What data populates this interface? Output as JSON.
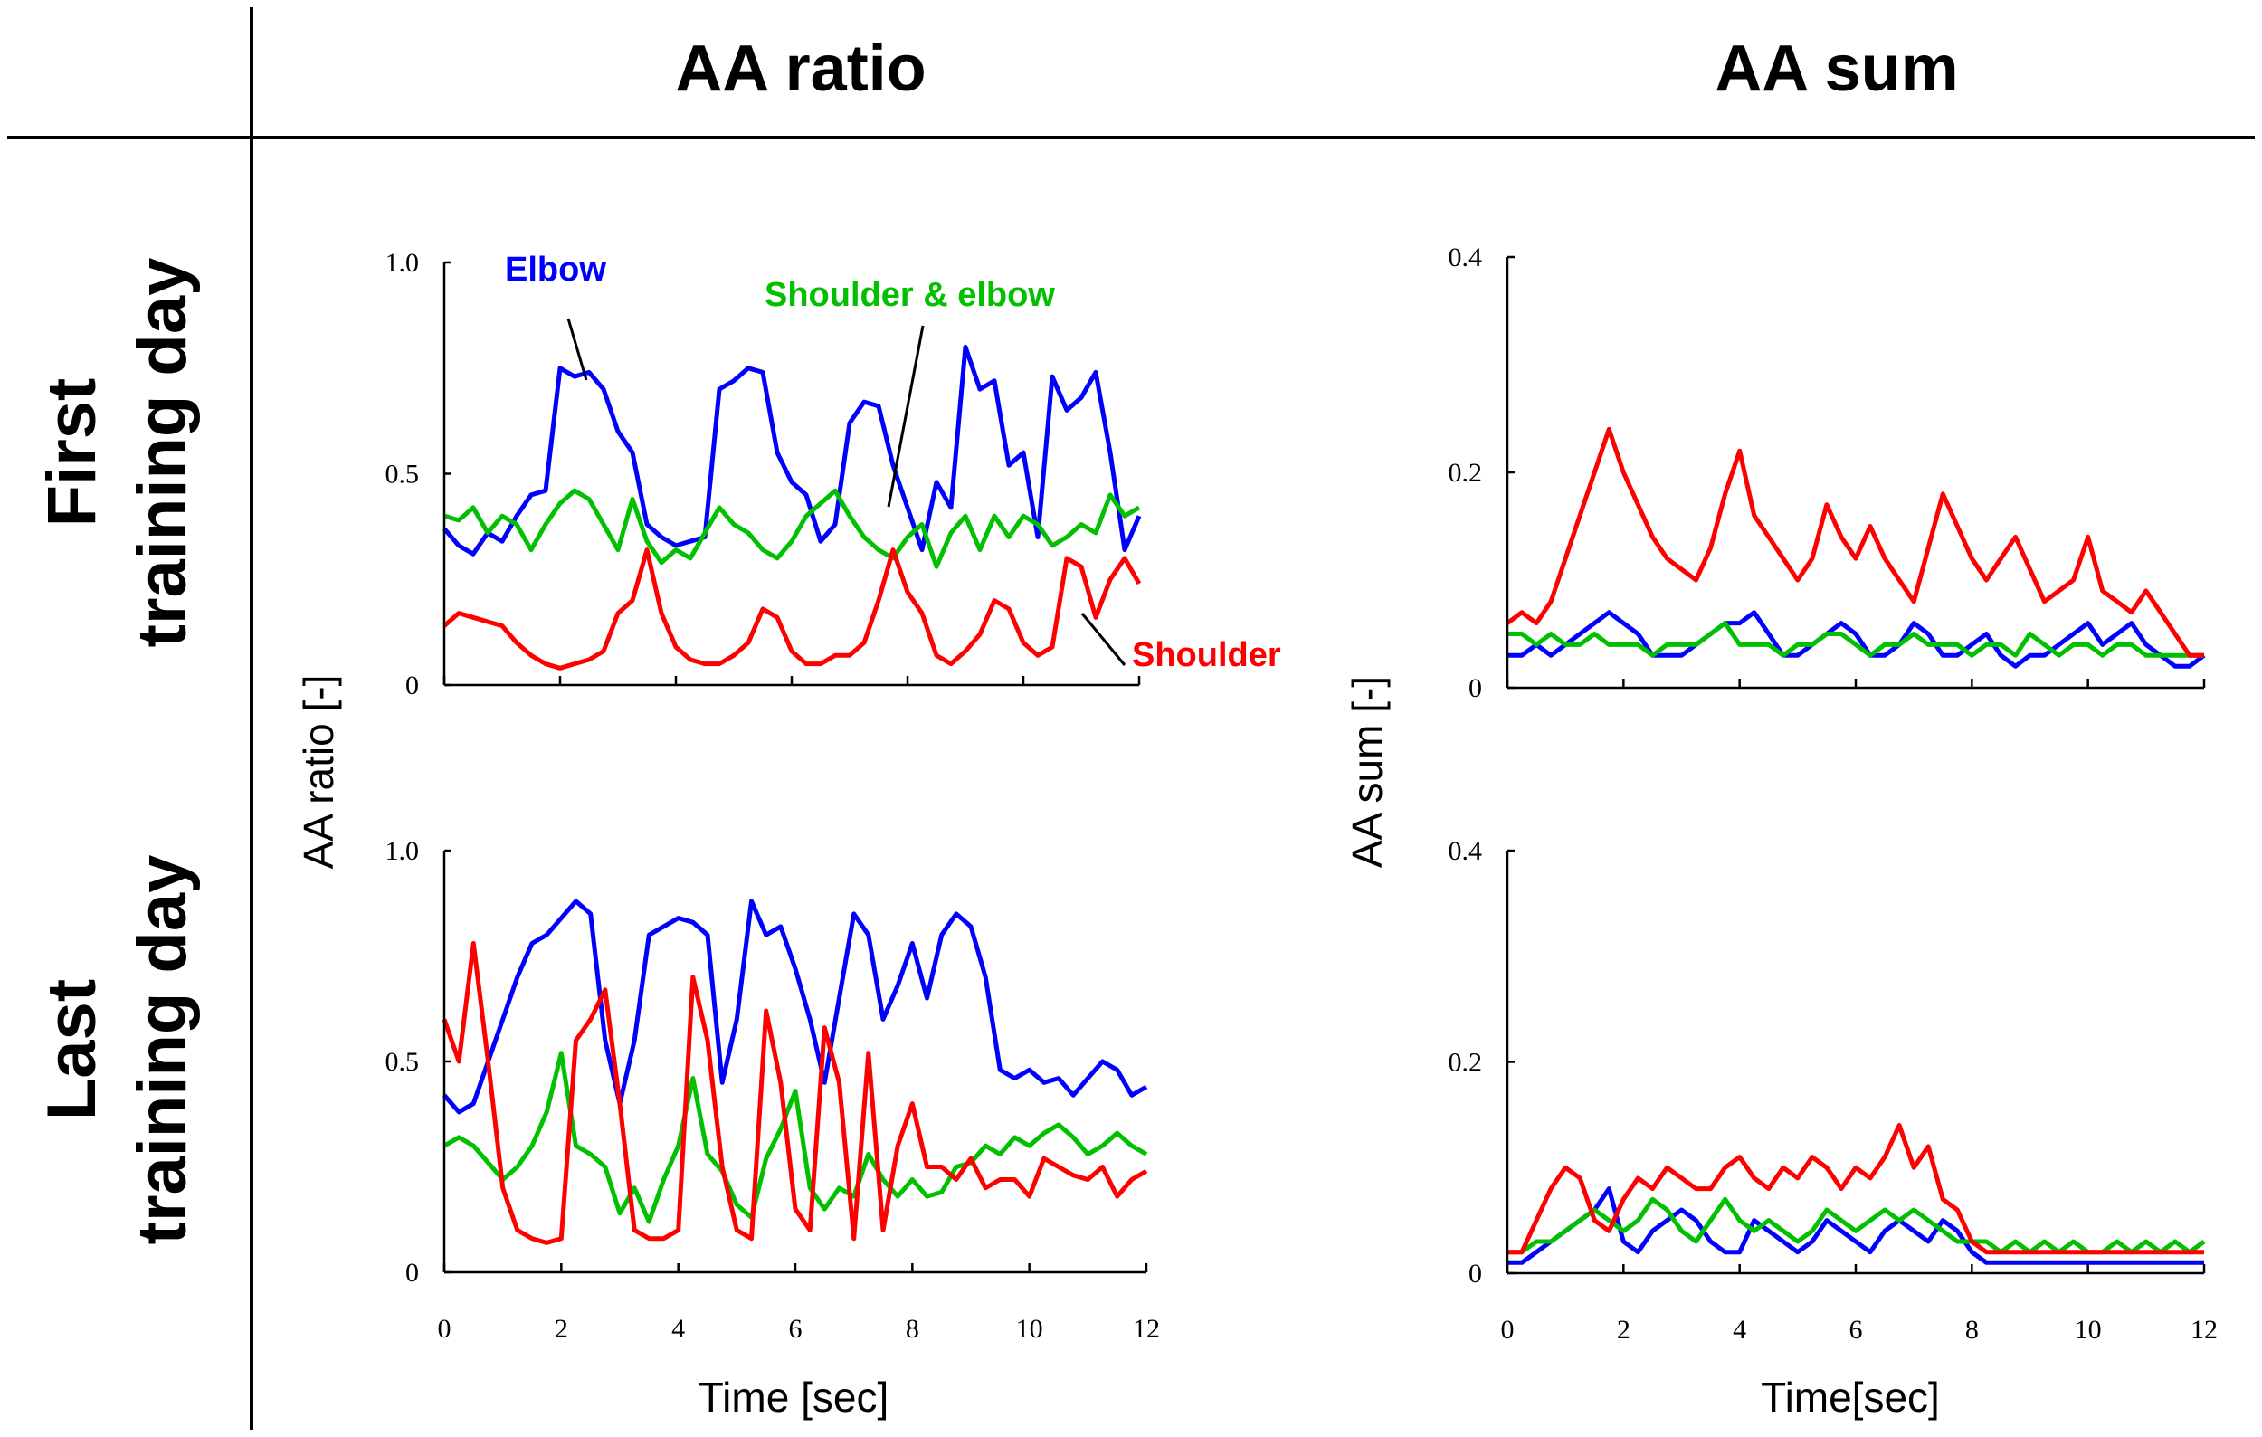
{
  "column_titles": [
    "AA ratio",
    "AA sum"
  ],
  "row_labels": [
    [
      "First",
      "training day"
    ],
    [
      "Last",
      "training day"
    ]
  ],
  "colors": {
    "Elbow": "#0000ff",
    "Shoulder & elbow": "#00c000",
    "Shoulder": "#ff0000"
  },
  "chart_data": [
    {
      "type": "line",
      "id": "ratio-first",
      "title": "AA ratio - First training day",
      "xlabel": "",
      "ylabel": "AA ratio [-]",
      "xlim": [
        0,
        12
      ],
      "ylim": [
        0,
        1.0
      ],
      "yticks": [
        "0",
        "0.5",
        "1.0"
      ],
      "ytick_values": [
        0,
        0.5,
        1.0
      ],
      "xticks": [],
      "xtick_values": [
        0,
        2,
        4,
        6,
        8,
        10,
        12
      ],
      "x_step": 0.25,
      "legend": [
        "Elbow",
        "Shoulder & elbow",
        "Shoulder"
      ],
      "series": [
        {
          "name": "Elbow",
          "values": [
            0.37,
            0.33,
            0.31,
            0.36,
            0.34,
            0.4,
            0.45,
            0.46,
            0.75,
            0.73,
            0.74,
            0.7,
            0.6,
            0.55,
            0.38,
            0.35,
            0.33,
            0.34,
            0.35,
            0.7,
            0.72,
            0.75,
            0.74,
            0.55,
            0.48,
            0.45,
            0.34,
            0.38,
            0.62,
            0.67,
            0.66,
            0.52,
            0.42,
            0.32,
            0.48,
            0.42,
            0.8,
            0.7,
            0.72,
            0.52,
            0.55,
            0.35,
            0.73,
            0.65,
            0.68,
            0.74,
            0.55,
            0.32,
            0.4
          ]
        },
        {
          "name": "Shoulder & elbow",
          "values": [
            0.4,
            0.39,
            0.42,
            0.36,
            0.4,
            0.38,
            0.32,
            0.38,
            0.43,
            0.46,
            0.44,
            0.38,
            0.32,
            0.44,
            0.34,
            0.29,
            0.32,
            0.3,
            0.36,
            0.42,
            0.38,
            0.36,
            0.32,
            0.3,
            0.34,
            0.4,
            0.43,
            0.46,
            0.4,
            0.35,
            0.32,
            0.3,
            0.35,
            0.38,
            0.28,
            0.36,
            0.4,
            0.32,
            0.4,
            0.35,
            0.4,
            0.38,
            0.33,
            0.35,
            0.38,
            0.36,
            0.45,
            0.4,
            0.42
          ]
        },
        {
          "name": "Shoulder",
          "values": [
            0.14,
            0.17,
            0.16,
            0.15,
            0.14,
            0.1,
            0.07,
            0.05,
            0.04,
            0.05,
            0.06,
            0.08,
            0.17,
            0.2,
            0.32,
            0.17,
            0.09,
            0.06,
            0.05,
            0.05,
            0.07,
            0.1,
            0.18,
            0.16,
            0.08,
            0.05,
            0.05,
            0.07,
            0.07,
            0.1,
            0.2,
            0.32,
            0.22,
            0.17,
            0.07,
            0.05,
            0.08,
            0.12,
            0.2,
            0.18,
            0.1,
            0.07,
            0.09,
            0.3,
            0.28,
            0.16,
            0.25,
            0.3,
            0.24
          ]
        }
      ]
    },
    {
      "type": "line",
      "id": "sum-first",
      "title": "AA sum - First training day",
      "xlabel": "",
      "ylabel": "AA sum [-]",
      "xlim": [
        0,
        12
      ],
      "ylim": [
        0,
        0.4
      ],
      "yticks": [
        "0",
        "0.2",
        "0.4"
      ],
      "ytick_values": [
        0,
        0.2,
        0.4
      ],
      "xticks": [],
      "xtick_values": [
        0,
        2,
        4,
        6,
        8,
        10,
        12
      ],
      "x_step": 0.25,
      "series": [
        {
          "name": "Elbow",
          "values": [
            0.03,
            0.03,
            0.04,
            0.03,
            0.04,
            0.05,
            0.06,
            0.07,
            0.06,
            0.05,
            0.03,
            0.03,
            0.03,
            0.04,
            0.05,
            0.06,
            0.06,
            0.07,
            0.05,
            0.03,
            0.03,
            0.04,
            0.05,
            0.06,
            0.05,
            0.03,
            0.03,
            0.04,
            0.06,
            0.05,
            0.03,
            0.03,
            0.04,
            0.05,
            0.03,
            0.02,
            0.03,
            0.03,
            0.04,
            0.05,
            0.06,
            0.04,
            0.05,
            0.06,
            0.04,
            0.03,
            0.02,
            0.02,
            0.03
          ]
        },
        {
          "name": "Shoulder & elbow",
          "values": [
            0.05,
            0.05,
            0.04,
            0.05,
            0.04,
            0.04,
            0.05,
            0.04,
            0.04,
            0.04,
            0.03,
            0.04,
            0.04,
            0.04,
            0.05,
            0.06,
            0.04,
            0.04,
            0.04,
            0.03,
            0.04,
            0.04,
            0.05,
            0.05,
            0.04,
            0.03,
            0.04,
            0.04,
            0.05,
            0.04,
            0.04,
            0.04,
            0.03,
            0.04,
            0.04,
            0.03,
            0.05,
            0.04,
            0.03,
            0.04,
            0.04,
            0.03,
            0.04,
            0.04,
            0.03,
            0.03,
            0.03,
            0.03,
            0.03
          ]
        },
        {
          "name": "Shoulder",
          "values": [
            0.06,
            0.07,
            0.06,
            0.08,
            0.12,
            0.16,
            0.2,
            0.24,
            0.2,
            0.17,
            0.14,
            0.12,
            0.11,
            0.1,
            0.13,
            0.18,
            0.22,
            0.16,
            0.14,
            0.12,
            0.1,
            0.12,
            0.17,
            0.14,
            0.12,
            0.15,
            0.12,
            0.1,
            0.08,
            0.13,
            0.18,
            0.15,
            0.12,
            0.1,
            0.12,
            0.14,
            0.11,
            0.08,
            0.09,
            0.1,
            0.14,
            0.09,
            0.08,
            0.07,
            0.09,
            0.07,
            0.05,
            0.03,
            0.03
          ]
        }
      ]
    },
    {
      "type": "line",
      "id": "ratio-last",
      "title": "AA ratio - Last training day",
      "xlabel": "Time [sec]",
      "ylabel": "AA ratio [-]",
      "xlim": [
        0,
        12
      ],
      "ylim": [
        0,
        1.0
      ],
      "yticks": [
        "0",
        "0.5",
        "1.0"
      ],
      "ytick_values": [
        0,
        0.5,
        1.0
      ],
      "xticks": [
        "0",
        "2",
        "4",
        "6",
        "8",
        "10",
        "12"
      ],
      "xtick_values": [
        0,
        2,
        4,
        6,
        8,
        10,
        12
      ],
      "x_step": 0.25,
      "series": [
        {
          "name": "Elbow",
          "values": [
            0.42,
            0.38,
            0.4,
            0.5,
            0.6,
            0.7,
            0.78,
            0.8,
            0.84,
            0.88,
            0.85,
            0.55,
            0.4,
            0.55,
            0.8,
            0.82,
            0.84,
            0.83,
            0.8,
            0.45,
            0.6,
            0.88,
            0.8,
            0.82,
            0.72,
            0.6,
            0.45,
            0.65,
            0.85,
            0.8,
            0.6,
            0.68,
            0.78,
            0.65,
            0.8,
            0.85,
            0.82,
            0.7,
            0.48,
            0.46,
            0.48,
            0.45,
            0.46,
            0.42,
            0.46,
            0.5,
            0.48,
            0.42,
            0.44
          ]
        },
        {
          "name": "Shoulder & elbow",
          "values": [
            0.3,
            0.32,
            0.3,
            0.26,
            0.22,
            0.25,
            0.3,
            0.38,
            0.52,
            0.3,
            0.28,
            0.25,
            0.14,
            0.2,
            0.12,
            0.22,
            0.3,
            0.46,
            0.28,
            0.24,
            0.16,
            0.13,
            0.27,
            0.34,
            0.43,
            0.2,
            0.15,
            0.2,
            0.18,
            0.28,
            0.22,
            0.18,
            0.22,
            0.18,
            0.19,
            0.25,
            0.26,
            0.3,
            0.28,
            0.32,
            0.3,
            0.33,
            0.35,
            0.32,
            0.28,
            0.3,
            0.33,
            0.3,
            0.28
          ]
        },
        {
          "name": "Shoulder",
          "values": [
            0.6,
            0.5,
            0.78,
            0.5,
            0.2,
            0.1,
            0.08,
            0.07,
            0.08,
            0.55,
            0.6,
            0.67,
            0.4,
            0.1,
            0.08,
            0.08,
            0.1,
            0.7,
            0.55,
            0.25,
            0.1,
            0.08,
            0.62,
            0.45,
            0.15,
            0.1,
            0.58,
            0.45,
            0.08,
            0.52,
            0.1,
            0.3,
            0.4,
            0.25,
            0.25,
            0.22,
            0.27,
            0.2,
            0.22,
            0.22,
            0.18,
            0.27,
            0.25,
            0.23,
            0.22,
            0.25,
            0.18,
            0.22,
            0.24
          ]
        }
      ]
    },
    {
      "type": "line",
      "id": "sum-last",
      "title": "AA sum - Last training day",
      "xlabel": "Time[sec]",
      "ylabel": "AA sum [-]",
      "xlim": [
        0,
        12
      ],
      "ylim": [
        0,
        0.4
      ],
      "yticks": [
        "0",
        "0.2",
        "0.4"
      ],
      "ytick_values": [
        0,
        0.2,
        0.4
      ],
      "xticks": [
        "0",
        "2",
        "4",
        "6",
        "8",
        "10",
        "12"
      ],
      "xtick_values": [
        0,
        2,
        4,
        6,
        8,
        10,
        12
      ],
      "x_step": 0.25,
      "series": [
        {
          "name": "Elbow",
          "values": [
            0.01,
            0.01,
            0.02,
            0.03,
            0.04,
            0.05,
            0.06,
            0.08,
            0.03,
            0.02,
            0.04,
            0.05,
            0.06,
            0.05,
            0.03,
            0.02,
            0.02,
            0.05,
            0.04,
            0.03,
            0.02,
            0.03,
            0.05,
            0.04,
            0.03,
            0.02,
            0.04,
            0.05,
            0.04,
            0.03,
            0.05,
            0.04,
            0.02,
            0.01,
            0.01,
            0.01,
            0.01,
            0.01,
            0.01,
            0.01,
            0.01,
            0.01,
            0.01,
            0.01,
            0.01,
            0.01,
            0.01,
            0.01,
            0.01
          ]
        },
        {
          "name": "Shoulder & elbow",
          "values": [
            0.02,
            0.02,
            0.03,
            0.03,
            0.04,
            0.05,
            0.06,
            0.05,
            0.04,
            0.05,
            0.07,
            0.06,
            0.04,
            0.03,
            0.05,
            0.07,
            0.05,
            0.04,
            0.05,
            0.04,
            0.03,
            0.04,
            0.06,
            0.05,
            0.04,
            0.05,
            0.06,
            0.05,
            0.06,
            0.05,
            0.04,
            0.03,
            0.03,
            0.03,
            0.02,
            0.03,
            0.02,
            0.03,
            0.02,
            0.03,
            0.02,
            0.02,
            0.03,
            0.02,
            0.03,
            0.02,
            0.03,
            0.02,
            0.03
          ]
        },
        {
          "name": "Shoulder",
          "values": [
            0.02,
            0.02,
            0.05,
            0.08,
            0.1,
            0.09,
            0.05,
            0.04,
            0.07,
            0.09,
            0.08,
            0.1,
            0.09,
            0.08,
            0.08,
            0.1,
            0.11,
            0.09,
            0.08,
            0.1,
            0.09,
            0.11,
            0.1,
            0.08,
            0.1,
            0.09,
            0.11,
            0.14,
            0.1,
            0.12,
            0.07,
            0.06,
            0.03,
            0.02,
            0.02,
            0.02,
            0.02,
            0.02,
            0.02,
            0.02,
            0.02,
            0.02,
            0.02,
            0.02,
            0.02,
            0.02,
            0.02,
            0.02,
            0.02
          ]
        }
      ]
    }
  ]
}
